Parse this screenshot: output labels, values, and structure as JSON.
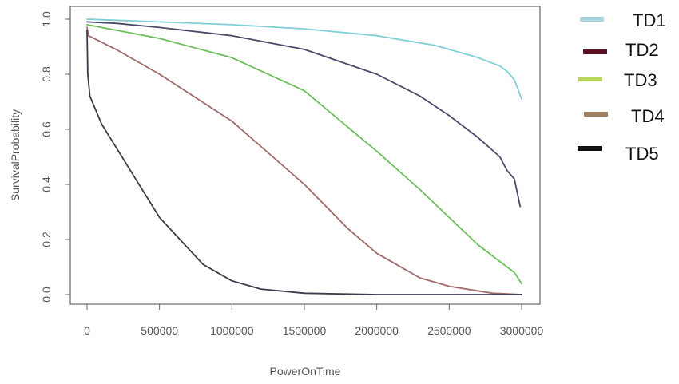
{
  "chart_data": {
    "type": "line",
    "title": "",
    "xlabel": "PowerOnTime",
    "ylabel": "SurvivalProbability",
    "xlim": [
      0,
      3000000
    ],
    "ylim": [
      0,
      1
    ],
    "x_ticks": [
      0,
      500000,
      1000000,
      1500000,
      2000000,
      2500000,
      3000000
    ],
    "x_tick_labels": [
      "0",
      "500000",
      "1000000",
      "1500000",
      "2000000",
      "2500000",
      "3000000"
    ],
    "y_ticks": [
      0,
      0.2,
      0.4,
      0.6,
      0.8,
      1.0
    ],
    "y_tick_labels": [
      "0.0",
      "0.2",
      "0.4",
      "0.6",
      "0.8",
      "1.0"
    ],
    "grid": false,
    "legend_position": "right",
    "legend": [
      {
        "label": "TD1",
        "color": "#a8d8dc"
      },
      {
        "label": "TD2",
        "color": "#5a1020"
      },
      {
        "label": "TD3",
        "color": "#b8d65a"
      },
      {
        "label": "TD4",
        "color": "#a08060"
      },
      {
        "label": "TD5",
        "color": "#111111"
      }
    ],
    "series": [
      {
        "color": "#7fcfd6",
        "x": [
          0,
          500000,
          1000000,
          1500000,
          2000000,
          2400000,
          2700000,
          2850000,
          2900000,
          2950000,
          3000000
        ],
        "y": [
          1.0,
          0.99,
          0.98,
          0.965,
          0.94,
          0.905,
          0.86,
          0.83,
          0.81,
          0.78,
          0.71
        ]
      },
      {
        "color": "#4a4a6a",
        "x": [
          0,
          200000,
          500000,
          1000000,
          1500000,
          2000000,
          2300000,
          2500000,
          2700000,
          2850000,
          2900000,
          2950000,
          2990000
        ],
        "y": [
          0.99,
          0.985,
          0.97,
          0.94,
          0.89,
          0.8,
          0.72,
          0.65,
          0.57,
          0.5,
          0.45,
          0.42,
          0.32
        ]
      },
      {
        "color": "#6cbf5c",
        "x": [
          0,
          200000,
          500000,
          1000000,
          1500000,
          2000000,
          2300000,
          2500000,
          2700000,
          2850000,
          2950000,
          3000000
        ],
        "y": [
          0.98,
          0.96,
          0.93,
          0.86,
          0.74,
          0.52,
          0.38,
          0.28,
          0.18,
          0.12,
          0.08,
          0.04
        ]
      },
      {
        "color": "#a06a68",
        "x": [
          0,
          10000,
          200000,
          500000,
          1000000,
          1500000,
          1800000,
          2000000,
          2300000,
          2500000,
          2800000,
          3000000
        ],
        "y": [
          0.97,
          0.94,
          0.89,
          0.8,
          0.63,
          0.4,
          0.24,
          0.15,
          0.06,
          0.03,
          0.005,
          0.0
        ]
      },
      {
        "color": "#3c3c4c",
        "x": [
          0,
          5000,
          20000,
          100000,
          300000,
          500000,
          800000,
          1000000,
          1200000,
          1500000,
          2000000,
          3000000
        ],
        "y": [
          0.96,
          0.8,
          0.72,
          0.62,
          0.45,
          0.28,
          0.11,
          0.05,
          0.02,
          0.005,
          0.0,
          0.0
        ]
      }
    ]
  }
}
